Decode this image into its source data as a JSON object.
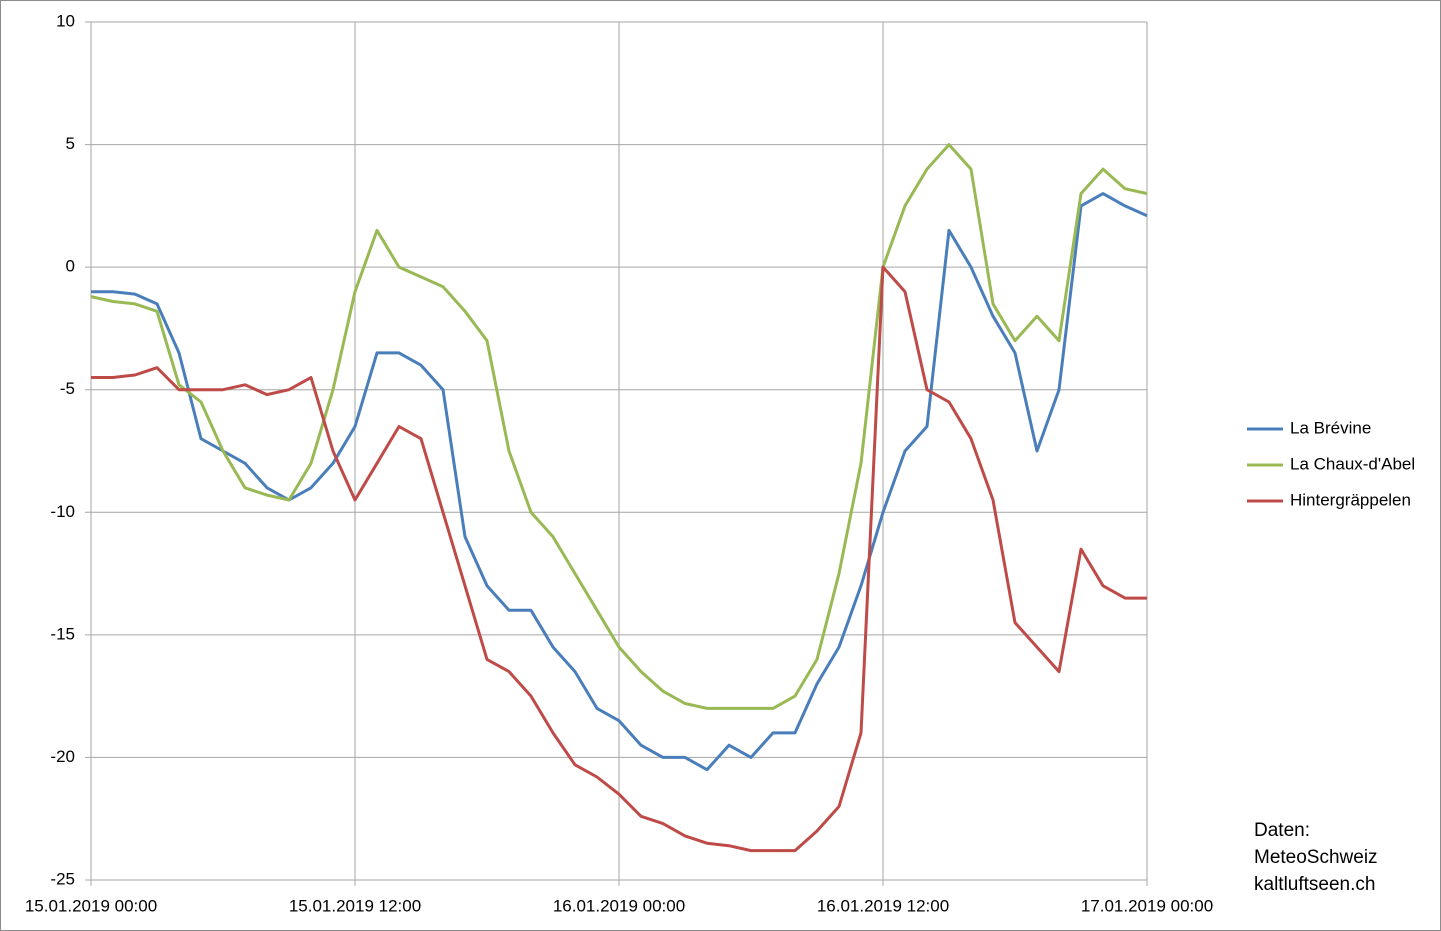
{
  "chart_data": {
    "type": "line",
    "categories": [
      "15.01.2019 00:00",
      null,
      null,
      null,
      null,
      null,
      null,
      null,
      null,
      null,
      null,
      null,
      "15.01.2019 12:00",
      null,
      null,
      null,
      null,
      null,
      null,
      null,
      null,
      null,
      null,
      null,
      "16.01.2019 00:00",
      null,
      null,
      null,
      null,
      null,
      null,
      null,
      null,
      null,
      null,
      null,
      "16.01.2019 12:00",
      null,
      null,
      null,
      null,
      null,
      null,
      null,
      null,
      null,
      null,
      null,
      "17.01.2019 00:00"
    ],
    "series": [
      {
        "name": "La Brévine",
        "color": "#4a7ebb",
        "values": [
          -1,
          -1,
          -1.1,
          -1.5,
          -3.5,
          -7,
          -7.5,
          -8,
          -9,
          -9.5,
          -9,
          -8,
          -6.5,
          -3.5,
          -3.5,
          -4,
          -5,
          -11,
          -13,
          -14,
          -14,
          -15.5,
          -16.5,
          -18,
          -18.5,
          -19.5,
          -20,
          -20,
          -20.5,
          -19.5,
          -20,
          -19,
          -19,
          -17,
          -15.5,
          -13,
          -10,
          -7.5,
          -6.5,
          1.5,
          0,
          -2,
          -3.5,
          -7.5,
          -5,
          2.5,
          3,
          2.5,
          2.1
        ]
      },
      {
        "name": "La Chaux-d'Abel",
        "color": "#98b954",
        "values": [
          -1.2,
          -1.4,
          -1.5,
          -1.8,
          -4.8,
          -5.5,
          -7.5,
          -9,
          -9.3,
          -9.5,
          -8,
          -5,
          -1,
          1.5,
          0,
          -0.4,
          -0.8,
          -1.8,
          -3,
          -7.5,
          -10,
          -11,
          -12.5,
          -14,
          -15.5,
          -16.5,
          -17.3,
          -17.8,
          -18,
          -18,
          -18,
          -18,
          -17.5,
          -16,
          -12.5,
          -8,
          0,
          2.5,
          4,
          5,
          4,
          -1.5,
          -3,
          -2,
          -3,
          3,
          4,
          3.2,
          3
        ]
      },
      {
        "name": "Hintergräppelen",
        "color": "#be4b48",
        "values": [
          -4.5,
          -4.5,
          -4.4,
          -4.1,
          -5,
          -5,
          -5,
          -4.8,
          -5.2,
          -5,
          -4.5,
          -7.5,
          -9.5,
          -8,
          -6.5,
          -7,
          -10,
          -13,
          -16,
          -16.5,
          -17.5,
          -19,
          -20.3,
          -20.8,
          -21.5,
          -22.4,
          -22.7,
          -23.2,
          -23.5,
          -23.6,
          -23.8,
          -23.8,
          -23.8,
          -23,
          -22,
          -19,
          0,
          -1,
          -5,
          -5.5,
          -7,
          -9.5,
          -14.5,
          -15.5,
          -16.5,
          -11.5,
          -13,
          -13.5,
          -13.5
        ]
      }
    ],
    "ylim": [
      -25,
      10
    ],
    "yticks": [
      10,
      5,
      0,
      -5,
      -10,
      -15,
      -20,
      -25
    ],
    "grid": true,
    "legend": "right",
    "annotations": [
      "Daten:",
      "MeteoSchweiz",
      "kaltluftseen.ch"
    ]
  }
}
